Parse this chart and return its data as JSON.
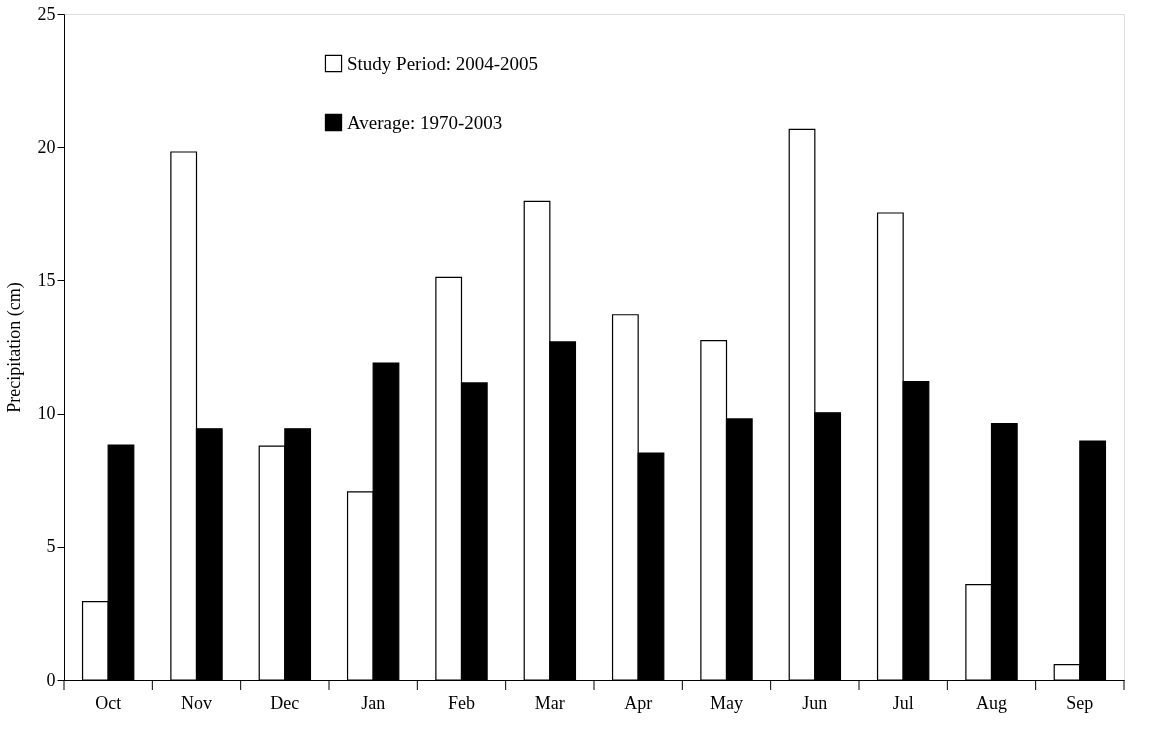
{
  "chart_data": {
    "type": "bar",
    "ylabel": "Precipitation (cm)",
    "categories": [
      "Oct",
      "Nov",
      "Dec",
      "Jan",
      "Feb",
      "Mar",
      "Apr",
      "May",
      "Jun",
      "Jul",
      "Aug",
      "Sep"
    ],
    "series": [
      {
        "name": "Study Period: 2004-2005",
        "color": "#ffffff",
        "values": [
          2.94,
          19.82,
          8.78,
          7.06,
          15.11,
          17.97,
          13.71,
          12.74,
          20.67,
          17.53,
          3.58,
          0.58
        ]
      },
      {
        "name": "Average: 1970-2003",
        "color": "#000000",
        "values": [
          8.82,
          9.43,
          9.43,
          11.9,
          11.15,
          12.69,
          8.52,
          9.8,
          10.03,
          11.2,
          9.62,
          8.97
        ]
      }
    ],
    "ylim": [
      0,
      25
    ],
    "yticks": [
      0,
      5,
      10,
      15,
      20,
      25
    ],
    "grid": false,
    "legend": "top left"
  }
}
